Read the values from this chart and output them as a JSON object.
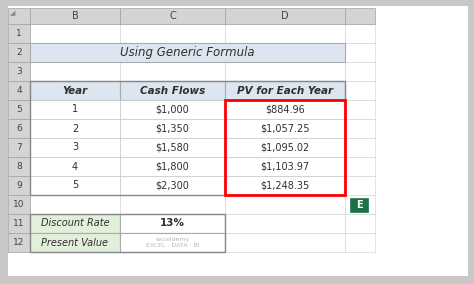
{
  "title": "Using Generic Formula",
  "title_bg": "#dce6f1",
  "col_headers": [
    "Year",
    "Cash Flows",
    "PV for Each Year"
  ],
  "header_bg": "#dce6f1",
  "years": [
    "1",
    "2",
    "3",
    "4",
    "5"
  ],
  "cash_flows": [
    "$1,000",
    "$1,350",
    "$1,580",
    "$1,800",
    "$2,300"
  ],
  "pv_values": [
    "$884.96",
    "$1,057.25",
    "$1,095.02",
    "$1,103.97",
    "$1,248.35"
  ],
  "summary_labels": [
    "Discount Rate",
    "Present Value"
  ],
  "summary_label_bg": "#e2efda",
  "discount_rate": "13%",
  "outer_bg": "#c8c8c8",
  "excel_white": "#ffffff",
  "col_header_bg": "#d4d4d4",
  "row_header_bg": "#d4d4d4",
  "grid_color": "#b0b0b0",
  "text_color": "#2f2f2f",
  "font_size": 7.0,
  "title_font_size": 8.5,
  "header_font_size": 7.5
}
